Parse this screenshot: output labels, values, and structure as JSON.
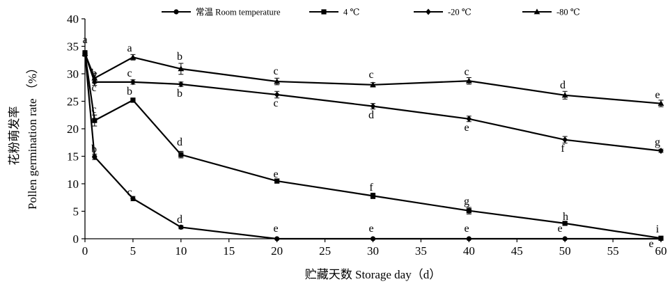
{
  "chart_data": {
    "type": "line",
    "xlabel": "贮藏天数 Storage day（d）",
    "ylabel_cn": "花粉萌发率",
    "ylabel_en": "Pollen germination rate （%）",
    "xlim": [
      0,
      60
    ],
    "ylim": [
      0,
      40
    ],
    "xticks": [
      0,
      5,
      10,
      15,
      20,
      25,
      30,
      35,
      40,
      45,
      50,
      55,
      60
    ],
    "yticks": [
      0,
      5,
      10,
      15,
      20,
      25,
      30,
      35,
      40
    ],
    "grid": false,
    "legend_position": "top",
    "series": [
      {
        "name": "常温 Room temperature",
        "marker": "circle",
        "x": [
          0,
          1,
          5,
          10,
          20,
          30,
          40,
          50,
          60
        ],
        "values": [
          33.7,
          14.9,
          7.3,
          2.1,
          0,
          0,
          0,
          0,
          0
        ],
        "errors": [
          0.5,
          0.5,
          0.4,
          0.3,
          0,
          0,
          0,
          0,
          0
        ],
        "labels": [
          "a",
          "b",
          "c",
          "d",
          "e",
          "e",
          "e",
          "e",
          "e"
        ]
      },
      {
        "name": "4 ℃",
        "marker": "square",
        "x": [
          0,
          1,
          5,
          10,
          20,
          30,
          40,
          50,
          60
        ],
        "values": [
          33.7,
          21.5,
          25.2,
          15.3,
          10.5,
          7.8,
          5.1,
          2.8,
          0.1
        ],
        "errors": [
          0.5,
          1.0,
          0.4,
          0.6,
          0.4,
          0.5,
          0.6,
          0.3,
          0.1
        ],
        "labels": [
          "a",
          "c",
          "b",
          "d",
          "e",
          "f",
          "g",
          "h",
          "i"
        ]
      },
      {
        "name": "-20 ℃",
        "marker": "diamond",
        "x": [
          0,
          1,
          5,
          10,
          20,
          30,
          40,
          50,
          60
        ],
        "values": [
          33.7,
          28.5,
          28.5,
          28.1,
          26.2,
          24.1,
          21.8,
          18.0,
          16.0
        ],
        "errors": [
          0.5,
          0.6,
          0.4,
          0.4,
          0.6,
          0.5,
          0.5,
          0.6,
          0.3
        ],
        "labels": [
          "a",
          "c",
          "c",
          "b",
          "c",
          "d",
          "e",
          "f",
          "g"
        ]
      },
      {
        "name": "-80 ℃",
        "marker": "triangle",
        "x": [
          0,
          1,
          5,
          10,
          20,
          30,
          40,
          50,
          60
        ],
        "values": [
          33.7,
          29.2,
          33.0,
          30.9,
          28.6,
          28.0,
          28.7,
          26.1,
          24.6
        ],
        "errors": [
          0.5,
          0.9,
          0.5,
          1.0,
          0.6,
          0.4,
          0.6,
          0.7,
          0.6
        ],
        "labels": [
          "a",
          "b",
          "a",
          "b",
          "c",
          "c",
          "c",
          "d",
          "e"
        ]
      }
    ]
  }
}
